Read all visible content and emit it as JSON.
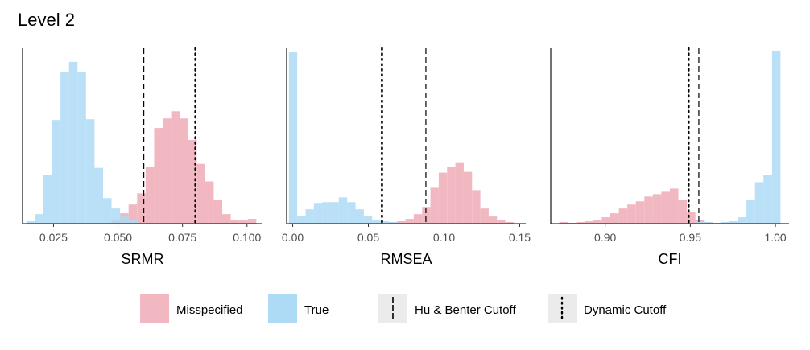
{
  "title": "Level 2",
  "colors": {
    "misspecified": "#F2B8C2",
    "true": "#ADDAF5",
    "overlap": "#9AA6C9",
    "key_bg": "#EBEBEB"
  },
  "legend": {
    "items": [
      {
        "label": "Misspecified",
        "kind": "fill",
        "color": "#F2B8C2"
      },
      {
        "label": "True",
        "kind": "fill",
        "color": "#ADDAF5"
      },
      {
        "label": "Hu & Benter Cutoff",
        "kind": "dashed"
      },
      {
        "label": "Dynamic Cutoff",
        "kind": "dotted"
      }
    ]
  },
  "chart_data": [
    {
      "type": "histogram",
      "xlabel": "SRMR",
      "xlim": [
        0.013,
        0.106
      ],
      "xticks": [
        0.025,
        0.05,
        0.075,
        0.1
      ],
      "tick_labels": [
        "0.025",
        "0.050",
        "0.075",
        "0.100"
      ],
      "bin_width": 0.0033,
      "ymax": 0.22,
      "hu_bentler_cutoff": 0.06,
      "dynamic_cutoff": 0.08,
      "series": [
        {
          "name": "True",
          "bin_starts": [
            0.0145,
            0.0178,
            0.0211,
            0.0244,
            0.0277,
            0.031,
            0.0343,
            0.0376,
            0.0409,
            0.0442,
            0.0475,
            0.0508,
            0.0541
          ],
          "heights": [
            0.003,
            0.012,
            0.061,
            0.13,
            0.19,
            0.203,
            0.19,
            0.131,
            0.07,
            0.032,
            0.019,
            0.009,
            0.004
          ]
        },
        {
          "name": "Misspecified",
          "bin_starts": [
            0.0475,
            0.0508,
            0.0541,
            0.0574,
            0.0607,
            0.064,
            0.0673,
            0.0706,
            0.0739,
            0.0772,
            0.0805,
            0.0838,
            0.0871,
            0.0904,
            0.0937,
            0.097,
            0.1003
          ],
          "heights": [
            0.004,
            0.013,
            0.024,
            0.038,
            0.071,
            0.12,
            0.132,
            0.141,
            0.132,
            0.105,
            0.075,
            0.053,
            0.03,
            0.012,
            0.005,
            0.004,
            0.006
          ]
        }
      ]
    },
    {
      "type": "histogram",
      "xlabel": "RMSEA",
      "xlim": [
        -0.004,
        0.154
      ],
      "xticks": [
        0,
        0.05,
        0.1,
        0.15
      ],
      "tick_labels": [
        "0.00",
        "0.05",
        "0.10",
        "0.15"
      ],
      "bin_width": 0.0055,
      "ymax": 0.22,
      "hu_bentler_cutoff": 0.088,
      "dynamic_cutoff": 0.059,
      "series": [
        {
          "name": "True",
          "bin_starts": [
            -0.0025,
            0.003,
            0.0085,
            0.014,
            0.0195,
            0.025,
            0.0305,
            0.036,
            0.0415,
            0.047,
            0.0525,
            0.058,
            0.0635,
            0.069
          ],
          "heights": [
            0.215,
            0.01,
            0.018,
            0.026,
            0.027,
            0.027,
            0.033,
            0.027,
            0.018,
            0.009,
            0.004,
            0.003,
            0.002,
            0.001
          ]
        },
        {
          "name": "Misspecified",
          "bin_starts": [
            0.0635,
            0.069,
            0.0745,
            0.08,
            0.0855,
            0.091,
            0.0965,
            0.102,
            0.1075,
            0.113,
            0.1185,
            0.124,
            0.1295,
            0.135,
            0.1405
          ],
          "heights": [
            0.002,
            0.003,
            0.006,
            0.012,
            0.021,
            0.045,
            0.064,
            0.071,
            0.077,
            0.065,
            0.042,
            0.019,
            0.009,
            0.004,
            0.002
          ]
        }
      ]
    },
    {
      "type": "histogram",
      "xlabel": "CFI",
      "xlim": [
        0.868,
        1.008
      ],
      "xticks": [
        0.9,
        0.95,
        1
      ],
      "tick_labels": [
        "0.90",
        "0.95",
        "1.00"
      ],
      "bin_width": 0.005,
      "ymax": 0.22,
      "hu_bentler_cutoff": 0.955,
      "dynamic_cutoff": 0.949,
      "series": [
        {
          "name": "True",
          "bin_starts": [
            0.953,
            0.958,
            0.963,
            0.968,
            0.973,
            0.978,
            0.983,
            0.988,
            0.993,
            0.998
          ],
          "heights": [
            0.003,
            0.002,
            0.001,
            0.002,
            0.003,
            0.008,
            0.03,
            0.052,
            0.061,
            0.217
          ]
        },
        {
          "name": "Misspecified",
          "bin_starts": [
            0.873,
            0.878,
            0.883,
            0.888,
            0.893,
            0.898,
            0.903,
            0.908,
            0.913,
            0.918,
            0.923,
            0.928,
            0.933,
            0.938,
            0.943,
            0.948,
            0.953,
            0.958
          ],
          "heights": [
            0.002,
            0.001,
            0.002,
            0.003,
            0.004,
            0.008,
            0.013,
            0.019,
            0.024,
            0.028,
            0.034,
            0.037,
            0.04,
            0.044,
            0.03,
            0.015,
            0.005,
            0.002
          ]
        }
      ]
    }
  ]
}
